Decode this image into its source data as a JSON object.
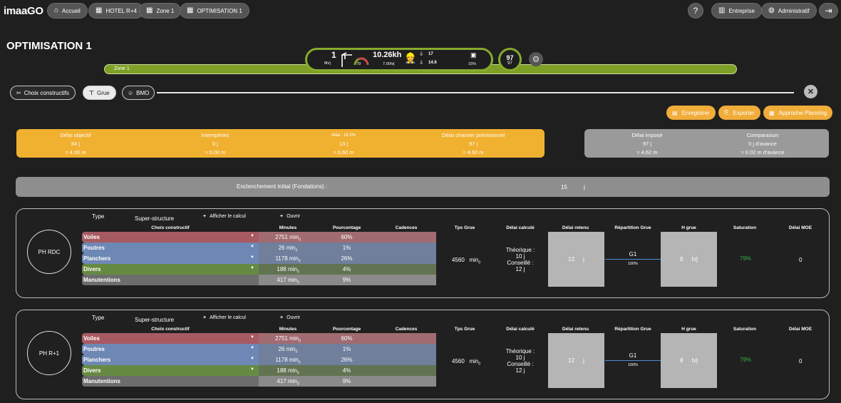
{
  "nav": {
    "logo": "imaaGO",
    "breadcrumb": [
      {
        "label": "Accueil",
        "icon": "home-icon"
      },
      {
        "label": "HOTEL R+4",
        "icon": "grid-icon"
      },
      {
        "label": "Zone 1",
        "icon": "grid-icon"
      },
      {
        "label": "OPTIMISATION 1",
        "icon": "grid-icon"
      }
    ],
    "entreprise": "Entreprise",
    "admin": "Administratif"
  },
  "page_title": "OPTIMISATION 1",
  "zone": {
    "label": "Zone 1",
    "kpi": {
      "persons": "1",
      "persons_unit": "8h/j",
      "gauge_value": "79",
      "hours": "10.26kh",
      "hours_rate": "7.00h/j",
      "workers_top": "17",
      "workers_bottom": "14.6",
      "calendar_pct": "15%",
      "circle_top": "97",
      "circle_bottom": "97"
    }
  },
  "tabs": [
    {
      "label": "Choix constructifs",
      "icon": "tools-icon"
    },
    {
      "label": "Grue",
      "icon": "crane-icon"
    },
    {
      "label": "BMO",
      "icon": "worker-icon"
    }
  ],
  "actions": {
    "save": "Enregistrer",
    "export": "Exporter",
    "planning": "Approche Planning"
  },
  "summary": {
    "objectif": {
      "title": "Délai objectif",
      "value": "84 j",
      "height": "≈ 4.00 m"
    },
    "intemperies": {
      "title": "Intempéries",
      "value": "0 j",
      "height": "≈ 0.00 m"
    },
    "aleas": {
      "title": "Aléa : 16.0%",
      "value": "13 j",
      "height": "≈ 0.60 m"
    },
    "previsionnel": {
      "title": "Délai chantier prévisionnel",
      "value": "97 j",
      "height": "≈ 4.60 m"
    },
    "impose": {
      "title": "Délai imposé",
      "value": "97 j",
      "height": "≈ 4.62 m"
    },
    "comparaison": {
      "title": "Comparaison",
      "value": "0 j d'avance",
      "height": "≈ 0.02 m d'avance"
    }
  },
  "enclenchement": {
    "label": "Enclenchement initial (Fondations) :",
    "value": "15",
    "unit": "j"
  },
  "headers": {
    "type": "Type",
    "type_value": "Super-structure",
    "show_calc": "Afficher le calcul",
    "open": "Ouvrir",
    "choix": "Choix constructif",
    "minutes": "Minutes",
    "pourcentage": "Pourcentage",
    "cadences": "Cadences",
    "tps_grue": "Tps Grue",
    "delai_calc": "Délai calculé",
    "delai_retenu": "Délai retenu",
    "repartition": "Répartition Grue",
    "h_grue": "H grue",
    "saturation": "Saturation",
    "delai_moe": "Délai MOE"
  },
  "levels": [
    {
      "name": "PH RDC",
      "rows": [
        {
          "label": "Voiles",
          "minutes": "2751 min",
          "pct": "60%",
          "color": "#a85a62"
        },
        {
          "label": "Poutres",
          "minutes": "26 min",
          "pct": "1%",
          "color": "#6e88b5"
        },
        {
          "label": "Planchers",
          "minutes": "1178 min",
          "pct": "26%",
          "color": "#6e88b5"
        },
        {
          "label": "Divers",
          "minutes": "188 min",
          "pct": "4%",
          "color": "#678a43"
        },
        {
          "label": "Manutentions",
          "minutes": "417 min",
          "pct": "9%",
          "color": "#777777"
        }
      ],
      "tps_grue": "4560",
      "tps_unit": "min",
      "theorique_label": "Théorique :",
      "theorique": "10 j",
      "conseille_label": "Conseillé :",
      "conseille": "12 j",
      "retenu": "12",
      "retenu_unit": "j",
      "repartition": "G1",
      "repartition_pct": "100%",
      "h_grue": "8",
      "h_unit": "h/j",
      "saturation": "79%",
      "moe": "0"
    },
    {
      "name": "PH R+1",
      "rows": [
        {
          "label": "Voiles",
          "minutes": "2751 min",
          "pct": "60%",
          "color": "#a85a62"
        },
        {
          "label": "Poutres",
          "minutes": "26 min",
          "pct": "1%",
          "color": "#6e88b5"
        },
        {
          "label": "Planchers",
          "minutes": "1178 min",
          "pct": "26%",
          "color": "#6e88b5"
        },
        {
          "label": "Divers",
          "minutes": "188 min",
          "pct": "4%",
          "color": "#678a43"
        },
        {
          "label": "Manutentions",
          "minutes": "417 min",
          "pct": "9%",
          "color": "#777777"
        }
      ],
      "tps_grue": "4560",
      "tps_unit": "min",
      "theorique_label": "Théorique :",
      "theorique": "10 j",
      "conseille_label": "Conseillé :",
      "conseille": "12 j",
      "retenu": "12",
      "retenu_unit": "j",
      "repartition": "G1",
      "repartition_pct": "100%",
      "h_grue": "8",
      "h_unit": "h/j",
      "saturation": "79%",
      "moe": "0"
    }
  ]
}
